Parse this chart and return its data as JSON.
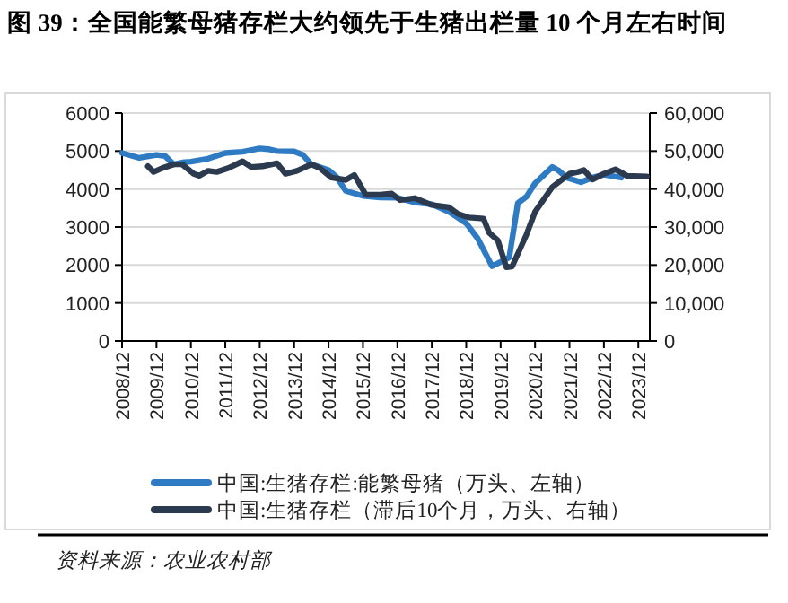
{
  "chart_data": {
    "type": "line",
    "title": "图 39：全国能繁母猪存栏大约领先于生猪出栏量 10 个月左右时间",
    "xlim": [
      "2008-12",
      "2024-04"
    ],
    "xticks": [
      {
        "value": "2008-12",
        "label": "2008/12"
      },
      {
        "value": "2009-12",
        "label": "2009/12"
      },
      {
        "value": "2010-12",
        "label": "2010/12"
      },
      {
        "value": "2011-12",
        "label": "2011/12"
      },
      {
        "value": "2012-12",
        "label": "2012/12"
      },
      {
        "value": "2013-12",
        "label": "2013/12"
      },
      {
        "value": "2014-12",
        "label": "2014/12"
      },
      {
        "value": "2015-12",
        "label": "2015/12"
      },
      {
        "value": "2016-12",
        "label": "2016/12"
      },
      {
        "value": "2017-12",
        "label": "2017/12"
      },
      {
        "value": "2018-12",
        "label": "2018/12"
      },
      {
        "value": "2019-12",
        "label": "2019/12"
      },
      {
        "value": "2020-12",
        "label": "2020/12"
      },
      {
        "value": "2021-12",
        "label": "2021/12"
      },
      {
        "value": "2022-12",
        "label": "2022/12"
      },
      {
        "value": "2023-12",
        "label": "2023/12"
      }
    ],
    "ylim": [
      0,
      6000
    ],
    "yticks": [
      0,
      1000,
      2000,
      3000,
      4000,
      5000,
      6000
    ],
    "y2lim": [
      0,
      60000
    ],
    "y2ticks": [
      {
        "value": 0,
        "label": "0"
      },
      {
        "value": 10000,
        "label": "10,000"
      },
      {
        "value": 20000,
        "label": "20,000"
      },
      {
        "value": 30000,
        "label": "30,000"
      },
      {
        "value": 40000,
        "label": "40,000"
      },
      {
        "value": 50000,
        "label": "50,000"
      },
      {
        "value": 60000,
        "label": "60,000"
      }
    ],
    "grid": "y",
    "legend": "bottom",
    "series": [
      {
        "name": "中国:生猪存栏:能繁母猪（万头、左轴）",
        "color": "#2e7bc4",
        "x": [
          "2008-12",
          "2009-06",
          "2009-12",
          "2010-03",
          "2010-06",
          "2010-09",
          "2010-12",
          "2011-06",
          "2011-12",
          "2012-06",
          "2012-12",
          "2013-03",
          "2013-06",
          "2013-12",
          "2014-03",
          "2014-06",
          "2014-12",
          "2015-03",
          "2015-06",
          "2015-12",
          "2016-06",
          "2016-12",
          "2017-06",
          "2017-12",
          "2018-06",
          "2018-12",
          "2019-04",
          "2019-09",
          "2019-12",
          "2020-03",
          "2020-06",
          "2020-09",
          "2020-12",
          "2021-06",
          "2021-08",
          "2021-11",
          "2022-04",
          "2022-08",
          "2022-12",
          "2023-06"
        ],
        "values": [
          4950,
          4820,
          4900,
          4870,
          4650,
          4700,
          4720,
          4800,
          4950,
          4980,
          5070,
          5050,
          5000,
          4990,
          4900,
          4650,
          4500,
          4300,
          3950,
          3820,
          3780,
          3770,
          3650,
          3600,
          3400,
          3100,
          2700,
          1970,
          2080,
          2200,
          3630,
          3800,
          4150,
          4580,
          4500,
          4300,
          4180,
          4300,
          4380,
          4300
        ]
      },
      {
        "name": "中国:生猪存栏（滞后10个月，万头、右轴）",
        "color": "#2c3a50",
        "axis": "y2",
        "x": [
          "2009-09",
          "2009-11",
          "2010-02",
          "2010-06",
          "2010-09",
          "2011-01",
          "2011-03",
          "2011-06",
          "2011-09",
          "2012-01",
          "2012-06",
          "2012-09",
          "2013-01",
          "2013-06",
          "2013-09",
          "2014-01",
          "2014-06",
          "2014-09",
          "2015-01",
          "2015-06",
          "2015-09",
          "2016-01",
          "2016-06",
          "2016-10",
          "2017-01",
          "2017-06",
          "2017-12",
          "2018-06",
          "2018-09",
          "2019-01",
          "2019-06",
          "2019-08",
          "2019-11",
          "2020-02",
          "2020-04",
          "2020-09",
          "2020-12",
          "2021-06",
          "2021-12",
          "2022-03",
          "2022-05",
          "2022-08",
          "2022-12",
          "2023-04",
          "2023-08",
          "2024-03"
        ],
        "values": [
          46000,
          44500,
          45500,
          46500,
          46500,
          44000,
          43500,
          44800,
          44500,
          45500,
          47300,
          45800,
          46000,
          46800,
          44000,
          44800,
          46500,
          45500,
          43000,
          42400,
          43700,
          38500,
          38500,
          38800,
          37100,
          37600,
          35800,
          35200,
          33500,
          32500,
          32200,
          28500,
          26500,
          19400,
          19600,
          28000,
          34000,
          40500,
          44000,
          44500,
          45000,
          42500,
          44000,
          45200,
          43500,
          43300
        ]
      }
    ],
    "annotations": [
      "资料来源：农业农村部"
    ]
  }
}
